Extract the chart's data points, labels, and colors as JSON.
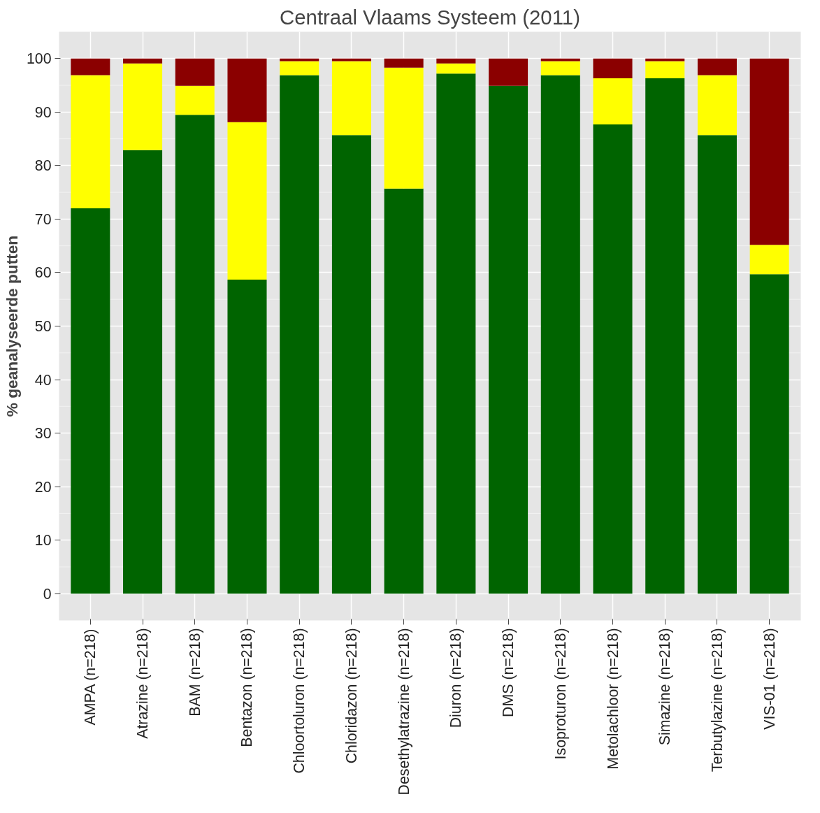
{
  "chart_data": {
    "type": "bar",
    "title": "Centraal Vlaams Systeem (2011)",
    "ylabel": "% geanalyseerde putten",
    "stacked": true,
    "grid": true,
    "categories": [
      "AMPA (n=218)",
      "Atrazine (n=218)",
      "BAM (n=218)",
      "Bentazon (n=218)",
      "Chloortoluron (n=218)",
      "Chloridazon (n=218)",
      "Desethylatrazine (n=218)",
      "Diuron (n=218)",
      "DMS (n=218)",
      "Isoproturon (n=218)",
      "Metolachloor (n=218)",
      "Simazine (n=218)",
      "Terbutylazine (n=218)",
      "VIS-01 (n=218)"
    ],
    "series": [
      {
        "color": "#006400",
        "values": [
          72.0,
          82.9,
          89.5,
          58.7,
          96.9,
          85.7,
          75.7,
          97.2,
          94.9,
          96.9,
          87.7,
          96.3,
          85.7,
          59.7
        ]
      },
      {
        "color": "#ffff00",
        "values": [
          24.9,
          16.2,
          5.4,
          29.4,
          2.6,
          13.8,
          22.6,
          1.9,
          0,
          2.6,
          8.6,
          3.2,
          11.2,
          5.5
        ]
      },
      {
        "color": "#8b0000",
        "values": [
          3.1,
          0.9,
          5.1,
          11.9,
          0.5,
          0.5,
          1.7,
          0.9,
          5.1,
          0.5,
          3.7,
          0.5,
          3.1,
          34.8
        ]
      }
    ],
    "ylim": [
      -5,
      105
    ],
    "yticks": [
      0,
      10,
      20,
      30,
      40,
      50,
      60,
      70,
      80,
      90,
      100
    ]
  }
}
